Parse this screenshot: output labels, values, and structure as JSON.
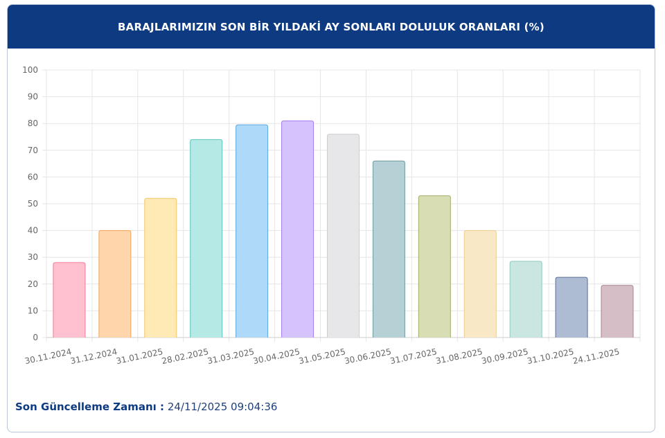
{
  "header": {
    "title": "BARAJLARIMIZIN SON BİR YILDAKİ AY SONLARI DOLULUK ORANLARI (%)"
  },
  "footer": {
    "label": "Son Güncelleme Zamanı :",
    "value": "24/11/2025 09:04:36"
  },
  "colors": {
    "header_bg": "#0e3a82",
    "bars": [
      {
        "fill": "#ffc0cf",
        "stroke": "#f07a96"
      },
      {
        "fill": "#ffd6ac",
        "stroke": "#f0a35a"
      },
      {
        "fill": "#ffe9b4",
        "stroke": "#f2c766"
      },
      {
        "fill": "#b4e9e6",
        "stroke": "#59c3bc"
      },
      {
        "fill": "#afd9f8",
        "stroke": "#56a8e0"
      },
      {
        "fill": "#d4c3fd",
        "stroke": "#a57cf2"
      },
      {
        "fill": "#e7e7e9",
        "stroke": "#cdcdd0"
      },
      {
        "fill": "#b5d1d5",
        "stroke": "#6d9aa1"
      },
      {
        "fill": "#d8ddb4",
        "stroke": "#a3ad69"
      },
      {
        "fill": "#f8e8c5",
        "stroke": "#e9cf8f"
      },
      {
        "fill": "#c9e7e0",
        "stroke": "#8ecabd"
      },
      {
        "fill": "#adbbd3",
        "stroke": "#5b6f96"
      },
      {
        "fill": "#d6bec6",
        "stroke": "#a8838f"
      }
    ]
  },
  "chart_data": {
    "type": "bar",
    "title": "BARAJLARIMIZIN SON BİR YILDAKİ AY SONLARI DOLULUK ORANLARI (%)",
    "categories": [
      "30.11.2024",
      "31.12.2024",
      "31.01.2025",
      "28.02.2025",
      "31.03.2025",
      "30.04.2025",
      "31.05.2025",
      "30.06.2025",
      "31.07.2025",
      "31.08.2025",
      "30.09.2025",
      "31.10.2025",
      "24.11.2025"
    ],
    "values": [
      28,
      40,
      52,
      74,
      79.5,
      81,
      76,
      66,
      53,
      40,
      28.5,
      22.5,
      19.5
    ],
    "ylim": [
      0,
      100
    ],
    "yticks": [
      0,
      10,
      20,
      30,
      40,
      50,
      60,
      70,
      80,
      90,
      100
    ],
    "grid": true,
    "legend": "none"
  }
}
